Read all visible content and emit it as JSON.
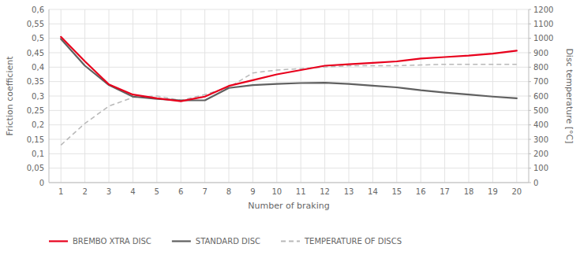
{
  "chart_data": {
    "type": "line",
    "xlabel": "Number of braking",
    "ylabel": "Friction coefficient",
    "y2label": "Disc temperature [°C]",
    "x": [
      1,
      2,
      3,
      4,
      5,
      6,
      7,
      8,
      9,
      10,
      11,
      12,
      13,
      14,
      15,
      16,
      17,
      18,
      19,
      20
    ],
    "xlim": [
      0.5,
      20.5
    ],
    "xticks": [
      1,
      2,
      3,
      4,
      5,
      6,
      7,
      8,
      9,
      10,
      11,
      12,
      13,
      14,
      15,
      16,
      17,
      18,
      19,
      20
    ],
    "ylim": [
      0,
      0.6
    ],
    "yticks": [
      0,
      {
        "value": 0.05,
        "label": "0,05"
      },
      {
        "value": 0.1,
        "label": "0,1"
      },
      {
        "value": 0.15,
        "label": "0,15"
      },
      {
        "value": 0.2,
        "label": "0,2"
      },
      {
        "value": 0.25,
        "label": "0,25"
      },
      {
        "value": 0.3,
        "label": "0,3"
      },
      {
        "value": 0.35,
        "label": "0,35"
      },
      {
        "value": 0.4,
        "label": "0,4"
      },
      {
        "value": 0.45,
        "label": "0,45"
      },
      {
        "value": 0.5,
        "label": "0,5"
      },
      {
        "value": 0.55,
        "label": "0,55"
      },
      {
        "value": 0.6,
        "label": "0,6"
      }
    ],
    "y2lim": [
      0,
      1200
    ],
    "y2ticks": [
      0,
      100,
      200,
      300,
      400,
      500,
      600,
      700,
      800,
      900,
      1000,
      1100,
      1200
    ],
    "grid": true,
    "legend": "bottom",
    "series": [
      {
        "name": "BREMBO XTRA DISC",
        "color": "#e8001c",
        "line_style": "solid",
        "values": [
          0.505,
          0.42,
          0.34,
          0.305,
          0.292,
          0.282,
          0.298,
          0.335,
          0.355,
          0.375,
          0.39,
          0.405,
          0.41,
          0.415,
          0.42,
          0.43,
          0.435,
          0.44,
          0.447,
          0.457
        ]
      },
      {
        "name": "STANDARD DISC",
        "color": "#606060",
        "line_style": "solid",
        "values": [
          0.498,
          0.405,
          0.338,
          0.298,
          0.29,
          0.285,
          0.285,
          0.328,
          0.338,
          0.342,
          0.345,
          0.346,
          0.342,
          0.336,
          0.33,
          0.32,
          0.312,
          0.305,
          0.298,
          0.292
        ]
      },
      {
        "name": "TEMPERATURE OF DISCS",
        "color": "#b8b8b8",
        "line_style": "dashed",
        "axis": "y2",
        "values": [
          260,
          410,
          530,
          590,
          600,
          570,
          610,
          660,
          760,
          780,
          790,
          800,
          810,
          810,
          810,
          815,
          820,
          820,
          820,
          820
        ]
      }
    ]
  }
}
